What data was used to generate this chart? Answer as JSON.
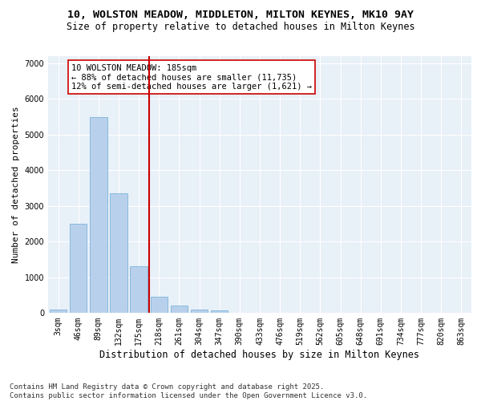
{
  "title_line1": "10, WOLSTON MEADOW, MIDDLETON, MILTON KEYNES, MK10 9AY",
  "title_line2": "Size of property relative to detached houses in Milton Keynes",
  "xlabel": "Distribution of detached houses by size in Milton Keynes",
  "ylabel": "Number of detached properties",
  "categories": [
    "3sqm",
    "46sqm",
    "89sqm",
    "132sqm",
    "175sqm",
    "218sqm",
    "261sqm",
    "304sqm",
    "347sqm",
    "390sqm",
    "433sqm",
    "476sqm",
    "519sqm",
    "562sqm",
    "605sqm",
    "648sqm",
    "691sqm",
    "734sqm",
    "777sqm",
    "820sqm",
    "863sqm"
  ],
  "values": [
    80,
    2500,
    5500,
    3350,
    1300,
    450,
    200,
    100,
    60,
    10,
    5,
    2,
    0,
    0,
    0,
    0,
    0,
    0,
    0,
    0,
    0
  ],
  "bar_color": "#b8d0eb",
  "bar_edgecolor": "#6aacd6",
  "vline_x": 4.5,
  "vline_color": "#cc0000",
  "annotation_text": "10 WOLSTON MEADOW: 185sqm\n← 88% of detached houses are smaller (11,735)\n12% of semi-detached houses are larger (1,621) →",
  "annotation_box_color": "#cc0000",
  "annotation_fontsize": 7.5,
  "ylim": [
    0,
    7200
  ],
  "yticks": [
    0,
    1000,
    2000,
    3000,
    4000,
    5000,
    6000,
    7000
  ],
  "bg_color": "#e8f0f8",
  "grid_color": "#ffffff",
  "footnote": "Contains HM Land Registry data © Crown copyright and database right 2025.\nContains public sector information licensed under the Open Government Licence v3.0.",
  "title_fontsize": 9.5,
  "subtitle_fontsize": 8.5,
  "xlabel_fontsize": 8.5,
  "ylabel_fontsize": 8,
  "tick_fontsize": 7,
  "footnote_fontsize": 6.5
}
